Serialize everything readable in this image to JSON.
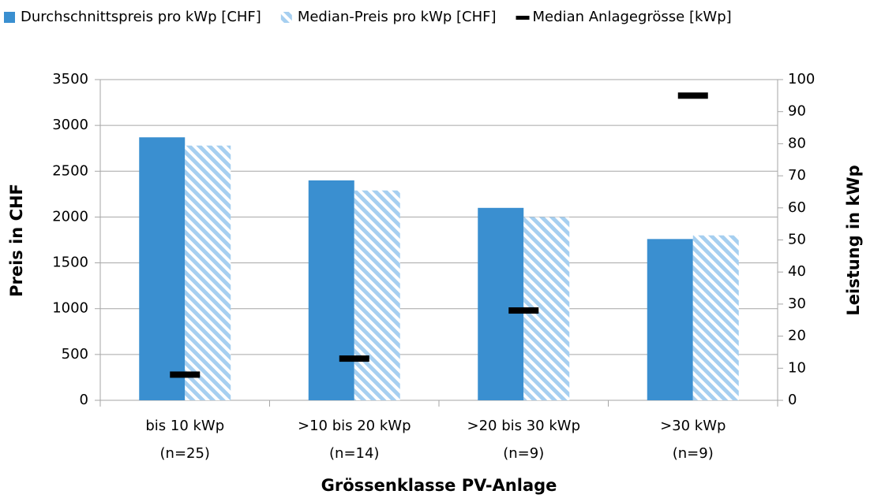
{
  "chart_data": {
    "type": "bar",
    "x_label": "Grössenklasse PV-Anlage",
    "y_label": "Preis in CHF",
    "y2_label": "Leistung in kWp",
    "categories": [
      [
        "bis 10 kWp",
        "(n=25)"
      ],
      [
        ">10 bis 20 kWp",
        "(n=14)"
      ],
      [
        ">20 bis 30 kWp",
        "(n=9)"
      ],
      [
        ">30 kWp",
        "(n=9)"
      ]
    ],
    "series": [
      {
        "name": "Durchschnittspreis pro kWp [CHF]",
        "color": "#3a8fd0",
        "type": "bar",
        "values": [
          2870,
          2400,
          2100,
          1760
        ]
      },
      {
        "name": "Median-Preis pro kWp [CHF]",
        "color": "#a6cff0",
        "pattern": "hatch",
        "type": "bar",
        "values": [
          2780,
          2290,
          2000,
          1800
        ]
      },
      {
        "name": "Median Anlagegrösse [kWp]",
        "color": "#000000",
        "type": "dash",
        "axis": "y2",
        "values": [
          8,
          13,
          28,
          95
        ]
      }
    ],
    "ylim": [
      0,
      3500
    ],
    "yticks": [
      0,
      500,
      1000,
      1500,
      2000,
      2500,
      3000,
      3500
    ],
    "y2lim": [
      0,
      100
    ],
    "y2ticks": [
      0,
      10,
      20,
      30,
      40,
      50,
      60,
      70,
      80,
      90,
      100
    ],
    "grid": true,
    "legend": "top"
  }
}
